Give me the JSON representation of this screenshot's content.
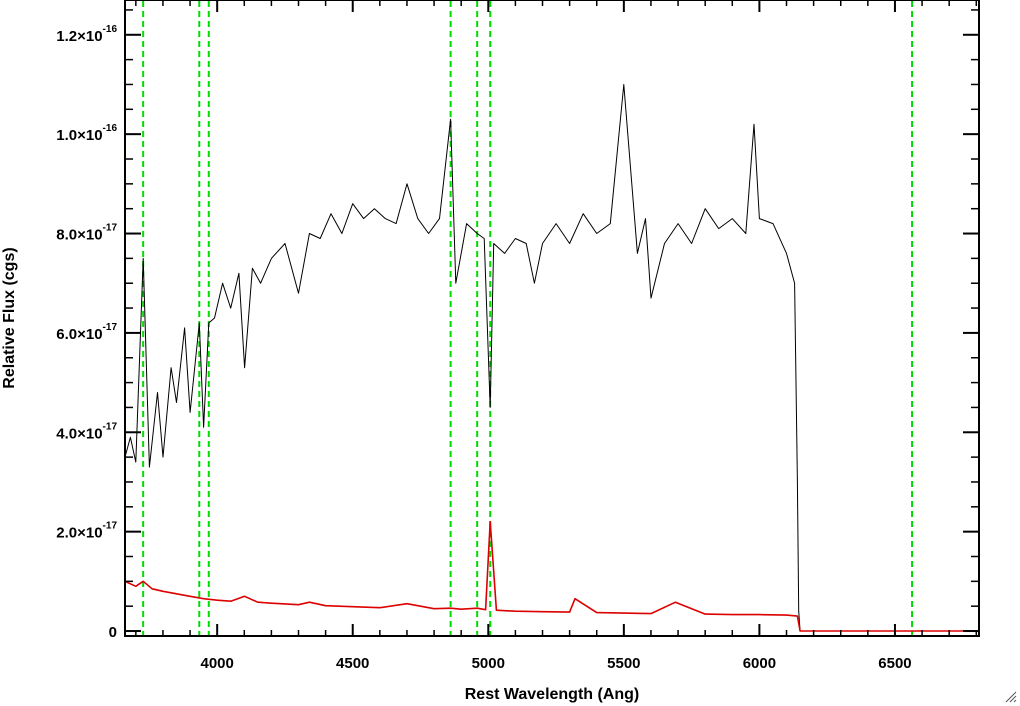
{
  "chart_data": {
    "type": "line",
    "xlabel": "Rest Wavelength (Ang)",
    "ylabel": "Relative Flux (cgs)",
    "xlim": [
      3660,
      6810
    ],
    "ylim": [
      -1e-18,
      1.27e-16
    ],
    "x_ticks": [
      {
        "value": 4000,
        "label": "4000"
      },
      {
        "value": 4500,
        "label": "4500"
      },
      {
        "value": 5000,
        "label": "5000"
      },
      {
        "value": 5500,
        "label": "5500"
      },
      {
        "value": 6000,
        "label": "6000"
      },
      {
        "value": 6500,
        "label": "6500"
      }
    ],
    "y_ticks": [
      {
        "value": 0,
        "mantissa": "0",
        "exponent": ""
      },
      {
        "value": 2e-17,
        "mantissa": "2.0×10",
        "exponent": "-17"
      },
      {
        "value": 4e-17,
        "mantissa": "4.0×10",
        "exponent": "-17"
      },
      {
        "value": 6e-17,
        "mantissa": "6.0×10",
        "exponent": "-17"
      },
      {
        "value": 8e-17,
        "mantissa": "8.0×10",
        "exponent": "-17"
      },
      {
        "value": 1e-16,
        "mantissa": "1.0×10",
        "exponent": "-16"
      },
      {
        "value": 1.2e-16,
        "mantissa": "1.2×10",
        "exponent": "-16"
      }
    ],
    "vertical_lines": {
      "color": "#00dd00",
      "style": "dashed",
      "x": [
        3727,
        3934,
        3969,
        4861,
        4959,
        5007,
        6563
      ]
    },
    "series": [
      {
        "color": "#000000",
        "x": [
          3660,
          3680,
          3700,
          3727,
          3750,
          3780,
          3800,
          3830,
          3850,
          3880,
          3900,
          3934,
          3950,
          3969,
          3990,
          4020,
          4050,
          4080,
          4101,
          4130,
          4160,
          4200,
          4250,
          4300,
          4340,
          4380,
          4420,
          4460,
          4500,
          4540,
          4580,
          4620,
          4660,
          4700,
          4740,
          4780,
          4820,
          4861,
          4880,
          4920,
          4959,
          4985,
          5007,
          5020,
          5060,
          5100,
          5140,
          5170,
          5200,
          5250,
          5300,
          5350,
          5400,
          5450,
          5500,
          5550,
          5580,
          5600,
          5650,
          5700,
          5750,
          5800,
          5850,
          5900,
          5950,
          5980,
          6000,
          6050,
          6100,
          6130,
          6140,
          6145,
          6150,
          6200,
          6300,
          6400,
          6500,
          6600,
          6700,
          6810
        ],
        "y": [
          3.5e-17,
          3.9e-17,
          3.4e-17,
          7.5e-17,
          3.3e-17,
          4.8e-17,
          3.5e-17,
          5.3e-17,
          4.6e-17,
          6.1e-17,
          4.4e-17,
          6.2e-17,
          4.1e-17,
          6.2e-17,
          6.3e-17,
          7e-17,
          6.5e-17,
          7.2e-17,
          5.3e-17,
          7.3e-17,
          7e-17,
          7.5e-17,
          7.8e-17,
          6.8e-17,
          8e-17,
          7.9e-17,
          8.4e-17,
          8e-17,
          8.6e-17,
          8.3e-17,
          8.5e-17,
          8.3e-17,
          8.2e-17,
          9e-17,
          8.3e-17,
          8e-17,
          8.3e-17,
          1.03e-16,
          7e-17,
          8.2e-17,
          8e-17,
          7.9e-17,
          4.5e-17,
          7.8e-17,
          7.6e-17,
          7.9e-17,
          7.8e-17,
          7e-17,
          7.8e-17,
          8.2e-17,
          7.8e-17,
          8.4e-17,
          8e-17,
          8.2e-17,
          1.1e-16,
          7.6e-17,
          8.3e-17,
          6.7e-17,
          7.8e-17,
          8.2e-17,
          7.8e-17,
          8.5e-17,
          8.1e-17,
          8.3e-17,
          8e-17,
          1.02e-16,
          8.3e-17,
          8.2e-17,
          7.6e-17,
          7e-17,
          3e-17,
          4e-18,
          0,
          0,
          0,
          0,
          0,
          0,
          0,
          0
        ]
      },
      {
        "color": "#dd0000",
        "x": [
          3660,
          3700,
          3727,
          3760,
          3800,
          3850,
          3900,
          3950,
          4000,
          4050,
          4101,
          4150,
          4200,
          4300,
          4340,
          4400,
          4500,
          4600,
          4700,
          4800,
          4861,
          4900,
          4959,
          4990,
          5007,
          5020,
          5030,
          5060,
          5100,
          5200,
          5300,
          5320,
          5400,
          5500,
          5600,
          5690,
          5800,
          5900,
          6000,
          6100,
          6140,
          6150,
          6300,
          6500,
          6700,
          6810
        ],
        "y": [
          1e-17,
          9e-18,
          1e-17,
          8.5e-18,
          8e-18,
          7.5e-18,
          7e-18,
          6.5e-18,
          6.2e-18,
          6e-18,
          7e-18,
          5.8e-18,
          5.6e-18,
          5.3e-18,
          5.8e-18,
          5.1e-18,
          4.9e-18,
          4.7e-18,
          5.5e-18,
          4.5e-18,
          4.6e-18,
          4.4e-18,
          4.6e-18,
          4.3e-18,
          2.2e-17,
          1.2e-17,
          4.2e-18,
          4.1e-18,
          4e-18,
          3.9e-18,
          3.8e-18,
          6.5e-18,
          3.7e-18,
          3.6e-18,
          3.5e-18,
          5.8e-18,
          3.4e-18,
          3.3e-18,
          3.3e-18,
          3.2e-18,
          3e-18,
          0,
          0,
          0,
          0,
          0
        ]
      }
    ]
  }
}
